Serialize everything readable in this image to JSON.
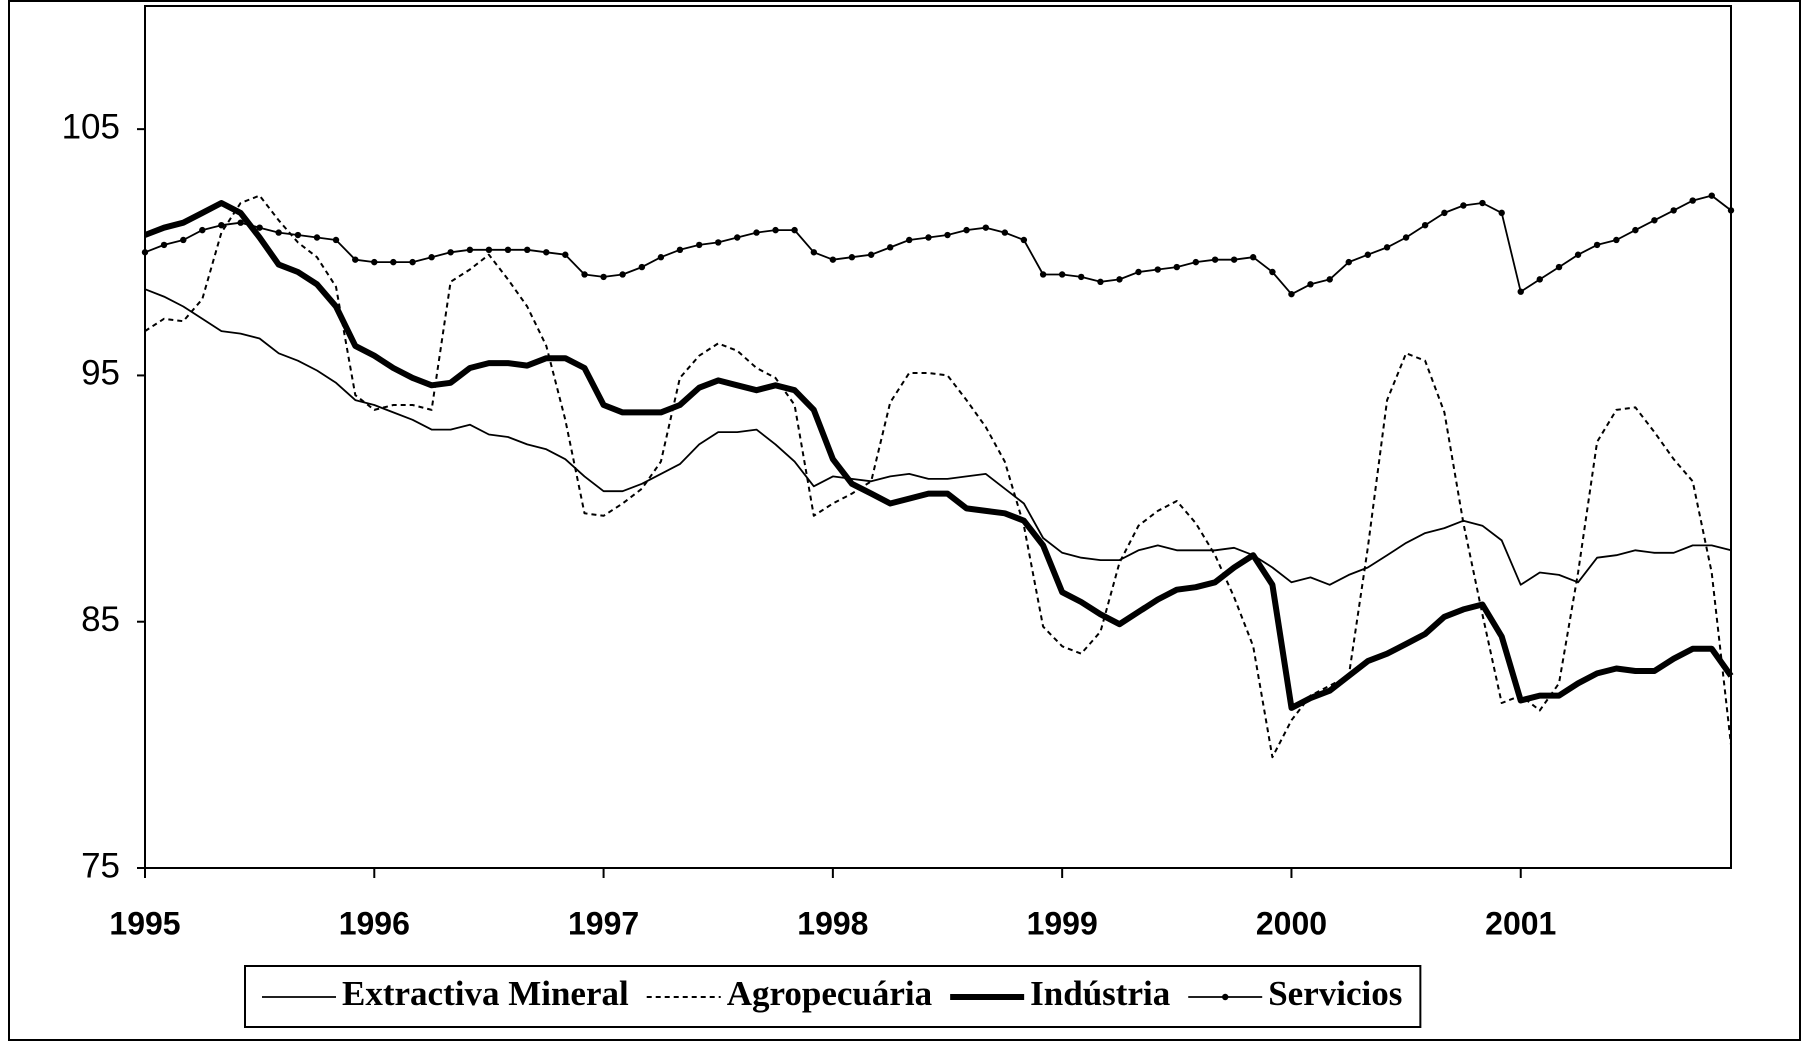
{
  "chart_data": {
    "type": "line",
    "x": [
      1995,
      1995.083,
      1995.167,
      1995.25,
      1995.333,
      1995.417,
      1995.5,
      1995.583,
      1995.667,
      1995.75,
      1995.833,
      1995.917,
      1996,
      1996.083,
      1996.167,
      1996.25,
      1996.333,
      1996.417,
      1996.5,
      1996.583,
      1996.667,
      1996.75,
      1996.833,
      1996.917,
      1997,
      1997.083,
      1997.167,
      1997.25,
      1997.333,
      1997.417,
      1997.5,
      1997.583,
      1997.667,
      1997.75,
      1997.833,
      1997.917,
      1998,
      1998.083,
      1998.167,
      1998.25,
      1998.333,
      1998.417,
      1998.5,
      1998.583,
      1998.667,
      1998.75,
      1998.833,
      1998.917,
      1999,
      1999.083,
      1999.167,
      1999.25,
      1999.333,
      1999.417,
      1999.5,
      1999.583,
      1999.667,
      1999.75,
      1999.833,
      1999.917,
      2000,
      2000.083,
      2000.167,
      2000.25,
      2000.333,
      2000.417,
      2000.5,
      2000.583,
      2000.667,
      2000.75,
      2000.833,
      2000.917,
      2001,
      2001.083,
      2001.167,
      2001.25,
      2001.333,
      2001.417,
      2001.5,
      2001.583,
      2001.667,
      2001.75,
      2001.833,
      2001.917
    ],
    "series": [
      {
        "name": "Extractiva Mineral",
        "color": "#000000",
        "line_style": "solid",
        "values": [
          98.5,
          98.2,
          97.8,
          97.3,
          96.8,
          96.7,
          96.5,
          95.9,
          95.6,
          95.2,
          94.7,
          94.0,
          93.8,
          93.5,
          93.2,
          92.8,
          92.8,
          93.0,
          92.6,
          92.5,
          92.2,
          92.0,
          91.6,
          90.9,
          90.3,
          90.3,
          90.6,
          91.0,
          91.4,
          92.2,
          92.7,
          92.7,
          92.8,
          92.2,
          91.5,
          90.5,
          90.9,
          90.8,
          90.7,
          90.9,
          91.0,
          90.8,
          90.8,
          90.9,
          91.0,
          90.4,
          89.8,
          88.4,
          87.8,
          87.6,
          87.5,
          87.5,
          87.9,
          88.1,
          87.9,
          87.9,
          87.9,
          88.0,
          87.7,
          87.2,
          86.6,
          86.8,
          86.5,
          86.9,
          87.2,
          87.7,
          88.2,
          88.6,
          88.8,
          89.1,
          88.9,
          88.3,
          86.5,
          87.0,
          86.9,
          86.6,
          87.6,
          87.7,
          87.9,
          87.8,
          87.8,
          88.1,
          88.1,
          87.9
        ]
      },
      {
        "name": "Agropecuária",
        "color": "#000000",
        "line_style": "dotted",
        "values": [
          96.8,
          97.3,
          97.2,
          98.1,
          100.8,
          102.0,
          102.3,
          101.3,
          100.4,
          99.8,
          98.6,
          94.2,
          93.6,
          93.8,
          93.8,
          93.6,
          98.8,
          99.3,
          99.9,
          98.9,
          97.8,
          96.2,
          93.2,
          89.4,
          89.3,
          89.8,
          90.4,
          91.5,
          94.9,
          95.8,
          96.3,
          96.0,
          95.3,
          94.9,
          93.8,
          89.3,
          89.8,
          90.2,
          90.7,
          93.9,
          95.1,
          95.1,
          95.0,
          94.0,
          92.9,
          91.5,
          88.9,
          84.8,
          84.0,
          83.7,
          84.6,
          87.4,
          88.9,
          89.5,
          89.9,
          89.0,
          87.7,
          86.0,
          84.0,
          79.5,
          81.0,
          82.0,
          82.4,
          82.8,
          88.0,
          94.0,
          95.9,
          95.6,
          93.5,
          89.0,
          85.3,
          81.7,
          82.0,
          81.4,
          82.5,
          87.0,
          92.3,
          93.6,
          93.7,
          92.7,
          91.6,
          90.7,
          87.0,
          80.0
        ]
      },
      {
        "name": "Indústria",
        "color": "#000000",
        "line_style": "thick",
        "values": [
          100.7,
          101.0,
          101.2,
          101.6,
          102.0,
          101.6,
          100.6,
          99.5,
          99.2,
          98.7,
          97.8,
          96.2,
          95.8,
          95.3,
          94.9,
          94.6,
          94.7,
          95.3,
          95.5,
          95.5,
          95.4,
          95.7,
          95.7,
          95.3,
          93.8,
          93.5,
          93.5,
          93.5,
          93.8,
          94.5,
          94.8,
          94.6,
          94.4,
          94.6,
          94.4,
          93.6,
          91.6,
          90.6,
          90.2,
          89.8,
          90.0,
          90.2,
          90.2,
          89.6,
          89.5,
          89.4,
          89.1,
          88.1,
          86.2,
          85.8,
          85.3,
          84.9,
          85.4,
          85.9,
          86.3,
          86.4,
          86.6,
          87.2,
          87.7,
          86.5,
          81.5,
          81.9,
          82.2,
          82.8,
          83.4,
          83.7,
          84.1,
          84.5,
          85.2,
          85.5,
          85.7,
          84.4,
          81.8,
          82.0,
          82.0,
          82.5,
          82.9,
          83.1,
          83.0,
          83.0,
          83.5,
          83.9,
          83.9,
          82.8
        ]
      },
      {
        "name": "Servicios",
        "color": "#000000",
        "line_style": "solid",
        "marker": true,
        "values": [
          100.0,
          100.3,
          100.5,
          100.9,
          101.1,
          101.2,
          101.0,
          100.8,
          100.7,
          100.6,
          100.5,
          99.7,
          99.6,
          99.6,
          99.6,
          99.8,
          100.0,
          100.1,
          100.1,
          100.1,
          100.1,
          100.0,
          99.9,
          99.1,
          99.0,
          99.1,
          99.4,
          99.8,
          100.1,
          100.3,
          100.4,
          100.6,
          100.8,
          100.9,
          100.9,
          100.0,
          99.7,
          99.8,
          99.9,
          100.2,
          100.5,
          100.6,
          100.7,
          100.9,
          101.0,
          100.8,
          100.5,
          99.1,
          99.1,
          99.0,
          98.8,
          98.9,
          99.2,
          99.3,
          99.4,
          99.6,
          99.7,
          99.7,
          99.8,
          99.2,
          98.3,
          98.7,
          98.9,
          99.6,
          99.9,
          100.2,
          100.6,
          101.1,
          101.6,
          101.9,
          102.0,
          101.6,
          98.4,
          98.9,
          99.4,
          99.9,
          100.3,
          100.5,
          100.9,
          101.3,
          101.7,
          102.1,
          102.3,
          101.7
        ]
      }
    ],
    "xlim": [
      1995,
      2001.917
    ],
    "xticks": [
      1995,
      1996,
      1997,
      1998,
      1999,
      2000,
      2001
    ],
    "ylim": [
      75,
      110
    ],
    "yticks": [
      75,
      85,
      95,
      105
    ],
    "legend": "bottom"
  }
}
